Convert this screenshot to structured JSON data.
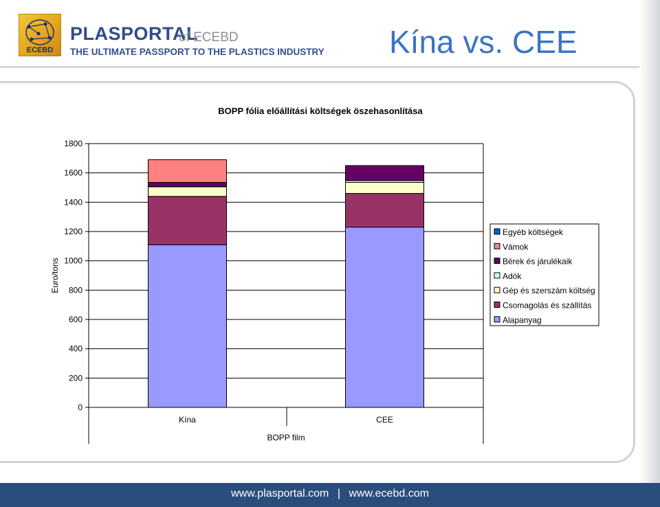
{
  "header": {
    "brand_name": "PLASPORTAL",
    "brand_of": "of ECEBD",
    "brand_tagline": "THE ULTIMATE PASSPORT TO THE PLASTICS INDUSTRY",
    "logo_text": "ECEBD",
    "slide_title": "Kína vs. CEE"
  },
  "footer": {
    "url1": "www.plasportal.com",
    "separator": "|",
    "url2": "www.ecebd.com"
  },
  "colors": {
    "title_blue": "#3a74c4",
    "footer_bg": "#2a4d7c",
    "brand_blue": "#2f4d8a"
  },
  "chart_data": {
    "type": "bar",
    "stacked": true,
    "title": "BOPP fólia előállítási költségek öszehasonlítása",
    "xlabel": "BOPP film",
    "ylabel": "Euro/tons",
    "ylim": [
      0,
      1800
    ],
    "yticks": [
      0,
      200,
      400,
      600,
      800,
      1000,
      1200,
      1400,
      1600,
      1800
    ],
    "categories": [
      "Kína",
      "CEE"
    ],
    "grid": true,
    "legend_position": "right",
    "series": [
      {
        "name": "Alapanyag",
        "color": "#9999ff",
        "values": [
          1110,
          1230
        ]
      },
      {
        "name": "Csomagolás és szállítás",
        "color": "#993366",
        "values": [
          330,
          230
        ]
      },
      {
        "name": "Gép és szerszám költség",
        "color": "#ffffcc",
        "values": [
          65,
          75
        ]
      },
      {
        "name": "Adók",
        "color": "#ccffff",
        "values": [
          2,
          12
        ]
      },
      {
        "name": "Bérek és járulékaik",
        "color": "#660066",
        "values": [
          28,
          103
        ]
      },
      {
        "name": "Vámok",
        "color": "#ff8080",
        "values": [
          155,
          0
        ]
      },
      {
        "name": "Egyéb költségek",
        "color": "#0066cc",
        "values": [
          0,
          0
        ]
      }
    ],
    "legend_order": [
      "Egyéb költségek",
      "Vámok",
      "Bérek és járulékaik",
      "Adók",
      "Gép és szerszám költség",
      "Csomagolás és szállítás",
      "Alapanyag"
    ]
  }
}
